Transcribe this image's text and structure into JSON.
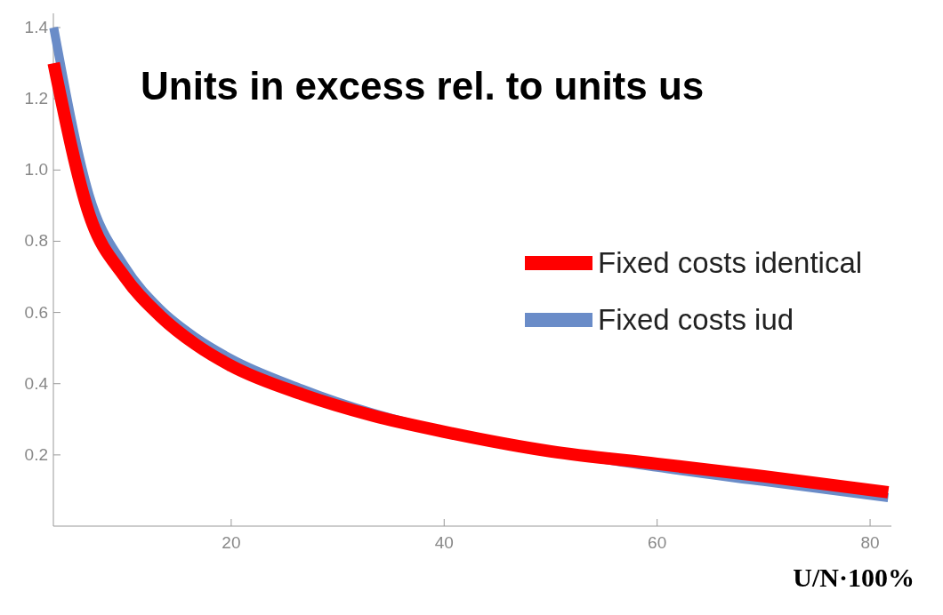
{
  "chart_data": {
    "type": "line",
    "title": "Units in excess rel. to units us",
    "xlabel": "U/N·100%",
    "x": [
      3.33,
      6.67,
      10,
      13.33,
      16.67,
      20,
      26.67,
      33.33,
      40,
      50,
      60,
      70,
      81.7
    ],
    "series": [
      {
        "name": "Fixed costs iud",
        "color": "#6a8cc8",
        "values": [
          1.4,
          0.93,
          0.73,
          0.61,
          0.53,
          0.47,
          0.385,
          null,
          null,
          null,
          0.165,
          0.125,
          0.08
        ]
      },
      {
        "name": "Fixed costs identical",
        "color": "#ff0000",
        "values": [
          1.3,
          0.875,
          0.7,
          0.59,
          0.51,
          0.45,
          0.37,
          0.31,
          0.265,
          0.21,
          0.175,
          0.14,
          0.095
        ]
      }
    ],
    "xlim": [
      3.3,
      82
    ],
    "ylim": [
      0,
      1.44
    ],
    "xticks": [
      20,
      40,
      60,
      80
    ],
    "yticks": [
      0.2,
      0.4,
      0.6,
      0.8,
      {
        "value": 1,
        "label": "1.0"
      },
      1.2,
      1.4
    ],
    "legend": "right",
    "grid": false
  }
}
